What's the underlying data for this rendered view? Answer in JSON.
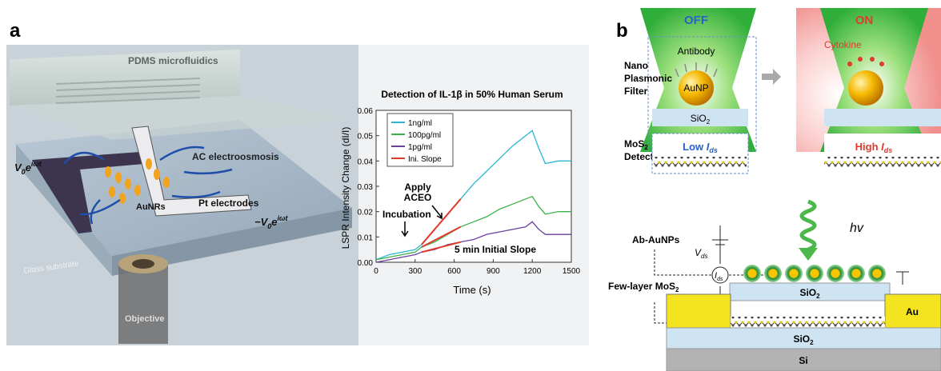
{
  "panel_a": {
    "letter": "a",
    "labels": {
      "pdms": "PDMS microfluidics",
      "ac": "AC electroosmosis",
      "v_left": [
        "V",
        "0",
        "e",
        "iωt"
      ],
      "aunrs": "AuNRs",
      "pt": "Pt electrodes",
      "v_right": [
        "−V",
        "0",
        "e",
        "iωt"
      ],
      "glass": "Glass substrate",
      "objective": "Objective"
    }
  },
  "chart_data": {
    "type": "line",
    "title": "Detection of IL-1β in 50% Human Serum",
    "x_label": "Time (s)",
    "y_label": "LSPR Intensity Change (dI/I)",
    "xlim": [
      0,
      1500
    ],
    "xticks": [
      0,
      300,
      600,
      900,
      1200,
      1500
    ],
    "ylim": [
      0,
      0.06
    ],
    "yticks": [
      {
        "value": 0,
        "label": "0.00"
      },
      0.01,
      0.02,
      0.03,
      0.04,
      0.05,
      0.06
    ],
    "legend": "upper left",
    "series": [
      {
        "name": "1ng/ml",
        "color": "#29b6d6",
        "x": [
          0,
          100,
          200,
          300,
          350,
          450,
          550,
          650,
          750,
          850,
          950,
          1050,
          1150,
          1200,
          1250,
          1300,
          1400,
          1500
        ],
        "values": [
          0.001,
          0.003,
          0.004,
          0.005,
          0.007,
          0.013,
          0.019,
          0.025,
          0.031,
          0.036,
          0.041,
          0.046,
          0.05,
          0.052,
          0.045,
          0.039,
          0.04,
          0.04
        ]
      },
      {
        "name": "100pg/ml",
        "color": "#3cb34a",
        "x": [
          0,
          100,
          200,
          300,
          350,
          450,
          550,
          650,
          750,
          850,
          950,
          1050,
          1150,
          1200,
          1250,
          1300,
          1400,
          1500
        ],
        "values": [
          0.001,
          0.002,
          0.003,
          0.004,
          0.006,
          0.008,
          0.011,
          0.014,
          0.016,
          0.018,
          0.021,
          0.023,
          0.025,
          0.026,
          0.022,
          0.019,
          0.02,
          0.02
        ]
      },
      {
        "name": "1pg/ml",
        "color": "#6a3fa0",
        "x": [
          0,
          100,
          200,
          300,
          350,
          450,
          550,
          650,
          750,
          850,
          950,
          1050,
          1150,
          1200,
          1250,
          1300,
          1400,
          1500
        ],
        "values": [
          0,
          0.001,
          0.002,
          0.003,
          0.004,
          0.005,
          0.007,
          0.008,
          0.009,
          0.011,
          0.012,
          0.013,
          0.014,
          0.016,
          0.013,
          0.011,
          0.011,
          0.011
        ]
      },
      {
        "name": "Ini. Slope",
        "color": "#e03a2e",
        "x": [
          350,
          450,
          550,
          650,
          null,
          350,
          650,
          null,
          350,
          650
        ],
        "values": [
          0.007,
          0.013,
          0.019,
          0.025,
          null,
          0.006,
          0.014,
          null,
          0.004,
          0.008
        ]
      }
    ],
    "annotations": [
      "Incubation",
      "Apply",
      "ACEO",
      "5 min Initial Slope"
    ]
  },
  "panel_b": {
    "letter": "b",
    "off": "OFF",
    "on": "ON",
    "antibody": "Antibody",
    "cytokine": "Cytokine",
    "aunp": "AuNP",
    "sio2_top": [
      "SiO",
      "2"
    ],
    "filter": [
      "Nano",
      "Plasmonic",
      "Filter"
    ],
    "detector": [
      "MoS",
      "2",
      "Detector"
    ],
    "low": [
      "Low ",
      "I",
      "ds"
    ],
    "high": [
      "High ",
      "I",
      "ds"
    ],
    "hv": "hv",
    "ab_aunps": "Ab-AuNPs",
    "vds": [
      "V",
      "ds"
    ],
    "ids": [
      "I",
      "ds"
    ],
    "few_layer": [
      "Few-layer MoS",
      "2"
    ],
    "sio2_chip": [
      "SiO",
      "2"
    ],
    "au": "Au",
    "sio2_base": [
      "SiO",
      "2"
    ],
    "si": "Si"
  }
}
